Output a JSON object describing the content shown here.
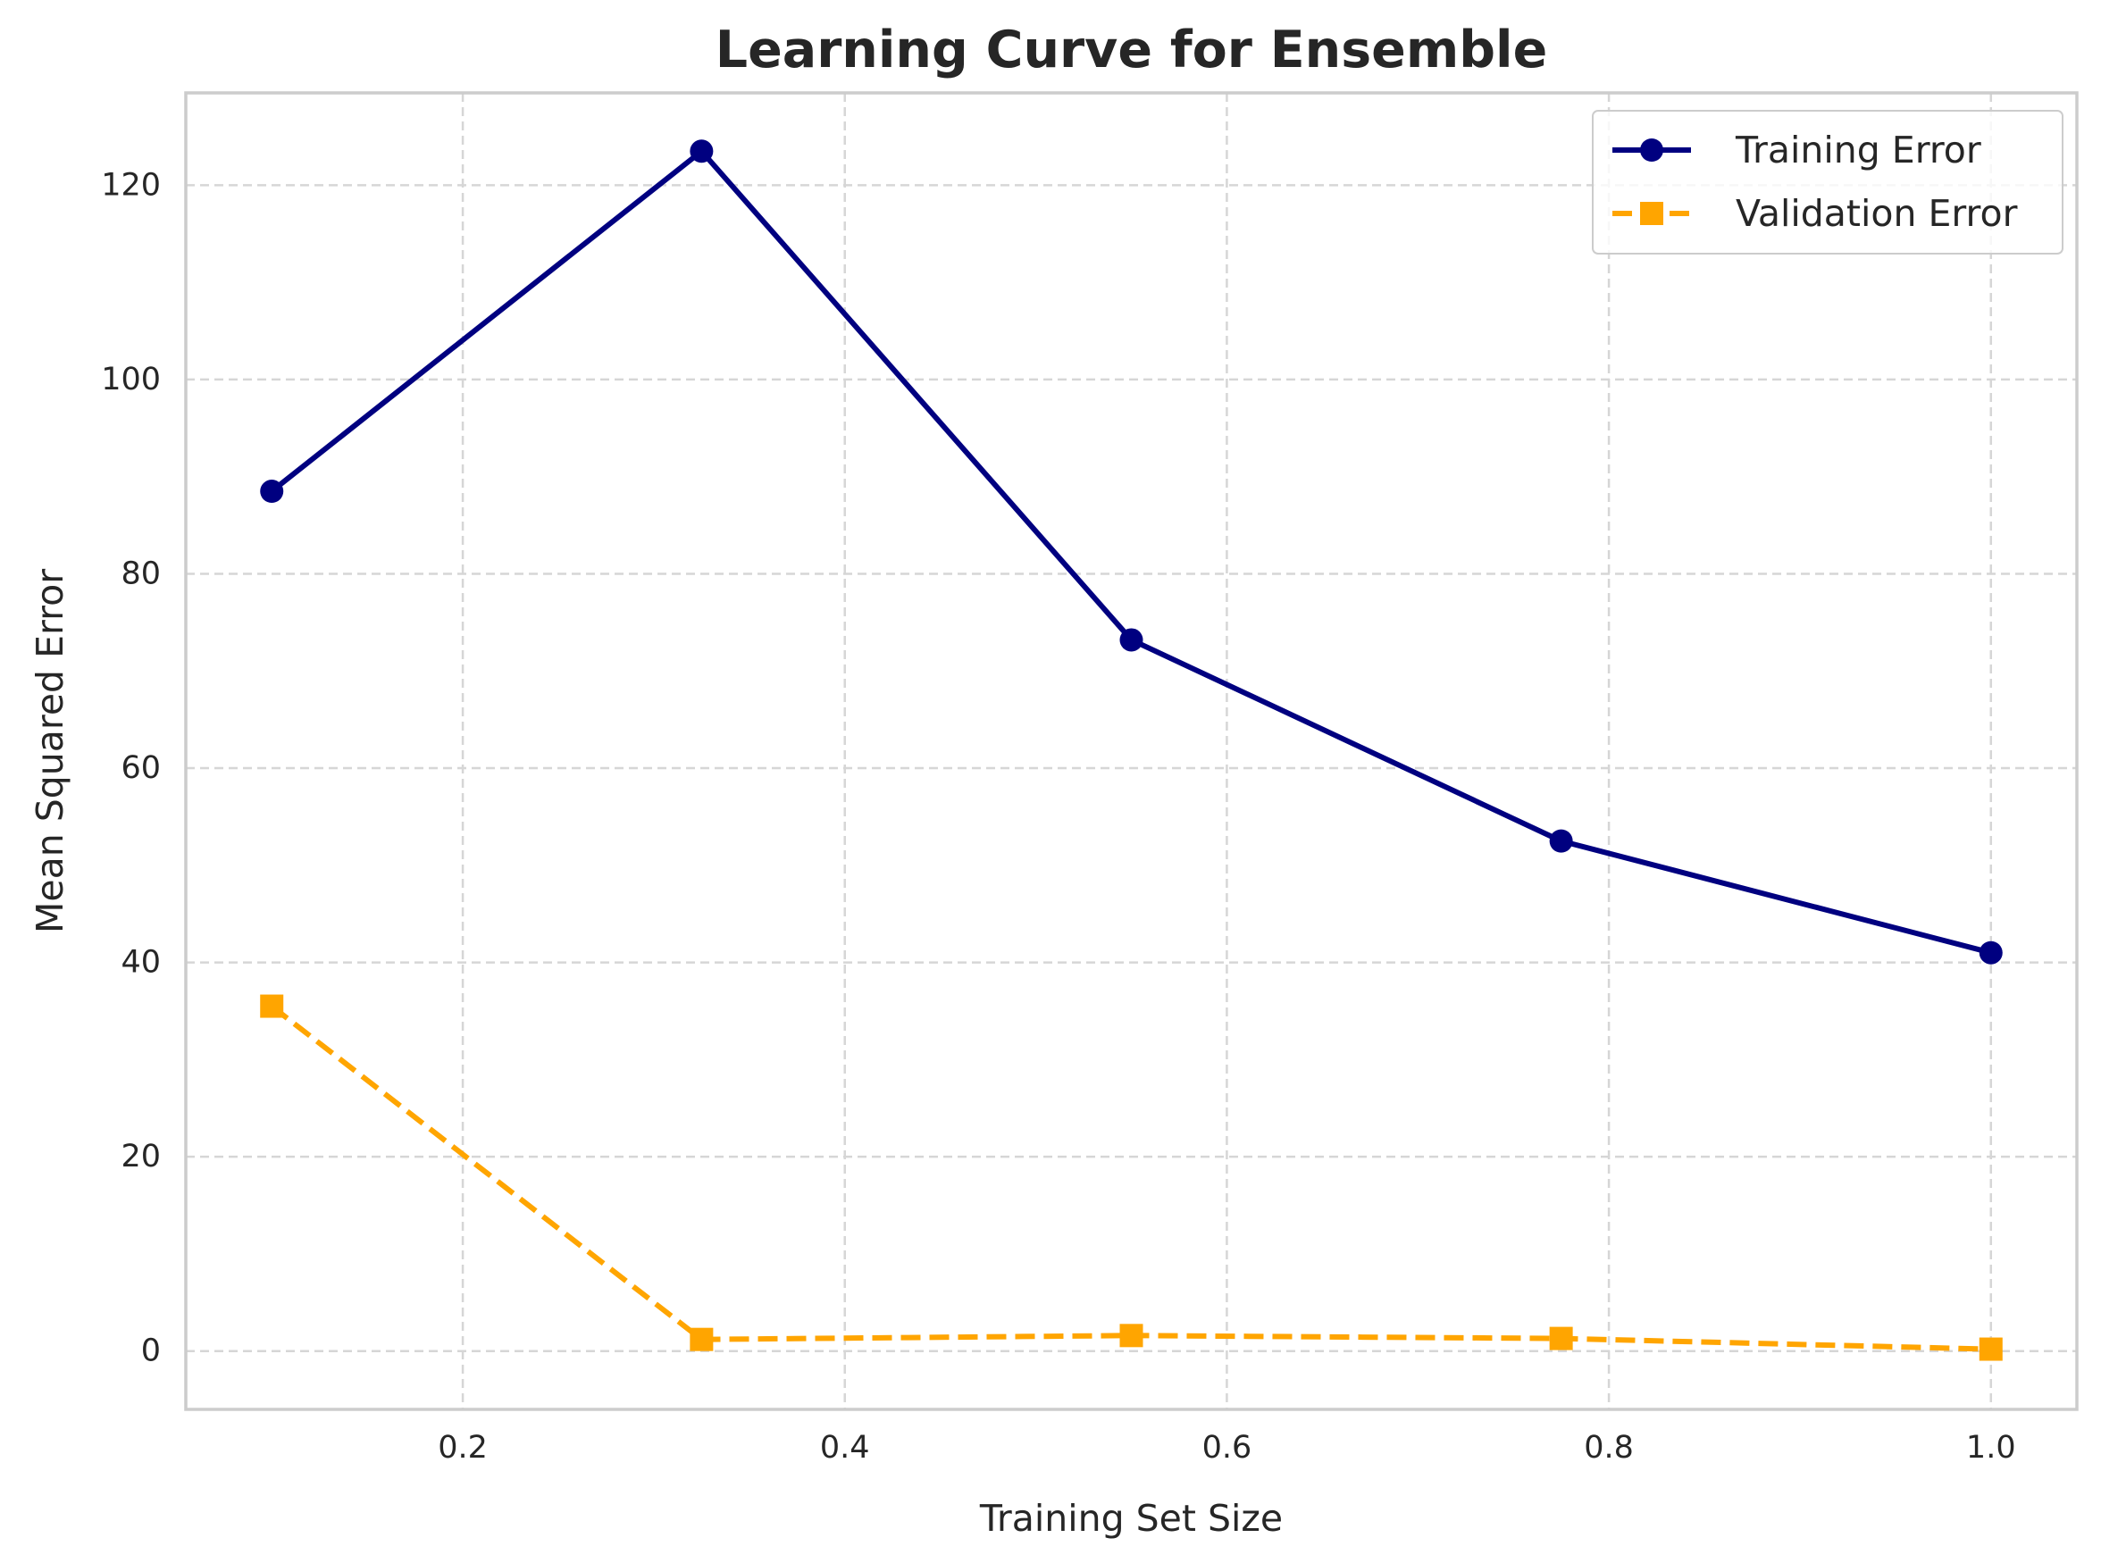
{
  "chart_data": {
    "type": "line",
    "title": "Learning Curve for Ensemble",
    "xlabel": "Training Set Size",
    "ylabel": "Mean Squared Error",
    "xlim": [
      0.055,
      1.045
    ],
    "ylim": [
      -6,
      129.5
    ],
    "xticks": [
      0.2,
      0.4,
      0.6,
      0.8,
      1.0
    ],
    "xtick_labels": [
      "0.2",
      "0.4",
      "0.6",
      "0.8",
      "1.0"
    ],
    "yticks": [
      0,
      20,
      40,
      60,
      80,
      100,
      120
    ],
    "ytick_labels": [
      "0",
      "20",
      "40",
      "60",
      "80",
      "100",
      "120"
    ],
    "x": [
      0.1,
      0.325,
      0.55,
      0.775,
      1.0
    ],
    "series": [
      {
        "name": "Training Error",
        "values": [
          88.5,
          123.5,
          73.2,
          52.5,
          41.0
        ],
        "color": "#000080",
        "marker": "circle",
        "linestyle": "solid"
      },
      {
        "name": "Validation Error",
        "values": [
          35.5,
          1.2,
          1.6,
          1.3,
          0.2
        ],
        "color": "#FFA500",
        "marker": "square",
        "linestyle": "dashed"
      }
    ],
    "grid": true,
    "legend_position": "top-right"
  }
}
